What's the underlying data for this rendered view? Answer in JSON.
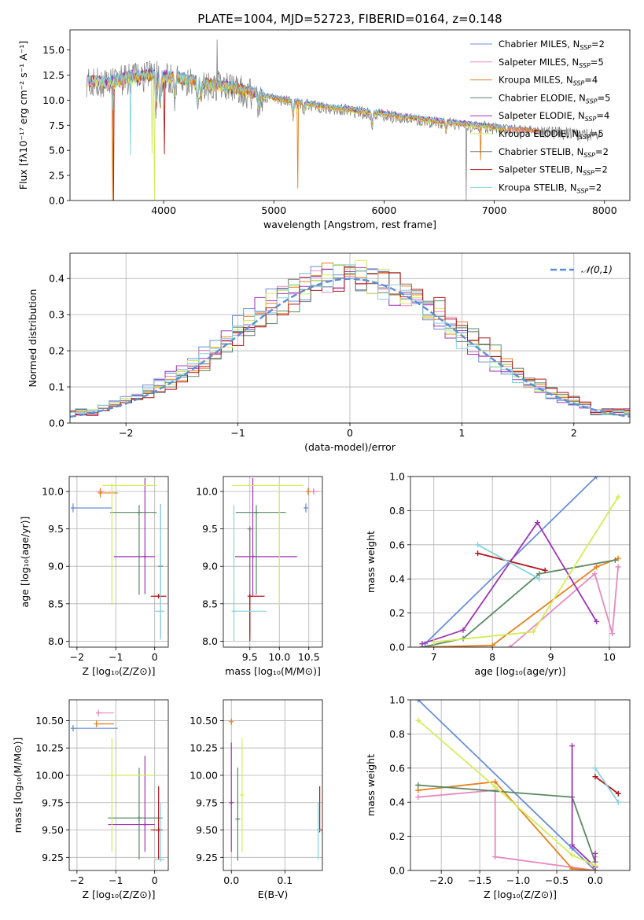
{
  "colors": {
    "Chabrier MILES": "#6a8fd8",
    "Salpeter MILES": "#e68abf",
    "Kroupa MILES": "#e5801b",
    "Chabrier ELODIE": "#5a8a64",
    "Salpeter ELODIE": "#a033b5",
    "Kroupa ELODIE": "#d4ec58",
    "Chabrier STELIB": "#737373",
    "Salpeter STELIB": "#b3151b",
    "Kroupa STELIB": "#86d3dd",
    "normal": "#5b8ed6"
  },
  "chart_data": [
    {
      "id": "spectrum",
      "type": "line",
      "title": "PLATE=1004, MJD=52723, FIBERID=0164, z=0.148",
      "xlabel": "wavelength [Angstrom, rest frame]",
      "ylabel": "Flux [fλ10⁻¹⁷ erg cm⁻² s⁻¹ A⁻¹]",
      "xlim": [
        3150,
        8230
      ],
      "ylim": [
        0,
        17
      ],
      "xticks": [
        4000,
        5000,
        6000,
        7000,
        8000
      ],
      "yticks": [
        0.0,
        2.5,
        5.0,
        7.5,
        10.0,
        12.5,
        15.0
      ],
      "grid": false,
      "legend_position": "top-right",
      "legend": [
        {
          "name": "Chabrier MILES",
          "nssp": "2"
        },
        {
          "name": "Salpeter MILES",
          "nssp": "5"
        },
        {
          "name": "Kroupa MILES",
          "nssp": "4"
        },
        {
          "name": "Chabrier ELODIE",
          "nssp": "5"
        },
        {
          "name": "Salpeter ELODIE",
          "nssp": "4"
        },
        {
          "name": "Kroupa ELODIE",
          "nssp": "5"
        },
        {
          "name": "Chabrier STELIB",
          "nssp": "2"
        },
        {
          "name": "Salpeter STELIB",
          "nssp": "2"
        },
        {
          "name": "Kroupa STELIB",
          "nssp": "2"
        }
      ],
      "continuum": {
        "x": [
          3300,
          3500,
          3700,
          3900,
          4100,
          4300,
          4600,
          5000,
          5500,
          6000,
          6500,
          7000,
          7500,
          7950
        ],
        "y": [
          12.0,
          11.7,
          12.3,
          12.5,
          12.3,
          11.8,
          11.3,
          10.2,
          9.3,
          8.6,
          7.9,
          7.3,
          6.9,
          6.6
        ]
      }
    },
    {
      "id": "residuals",
      "type": "step",
      "xlabel": "(data-model)/error",
      "ylabel": "Normed distribution",
      "xlim": [
        -2.5,
        2.5
      ],
      "ylim": [
        0,
        0.47
      ],
      "xticks": [
        -2,
        -1,
        0,
        1,
        2
      ],
      "yticks": [
        0.0,
        0.1,
        0.2,
        0.3,
        0.4
      ],
      "grid": true,
      "legend_position": "top-right",
      "legend": [
        {
          "name": "𝒩(0,1)"
        }
      ],
      "normal": {
        "mu": 0,
        "sigma": 1
      }
    },
    {
      "id": "age-vs-Z",
      "type": "errorbar",
      "xlabel": "Z [log₁₀(Z/Z⊙)]",
      "ylabel": "age  [log₁₀(age/yr)]",
      "xlim": [
        -2.2,
        0.35
      ],
      "ylim": [
        7.92,
        10.2
      ],
      "xticks": [
        -2,
        -1,
        0
      ],
      "yticks": [
        8.0,
        8.5,
        9.0,
        9.5,
        10.0
      ],
      "grid": true,
      "points": [
        {
          "series": "Chabrier MILES",
          "x": -2.1,
          "xerr": [
            0.05,
            1.0
          ],
          "y": 9.78,
          "yerr": [
            0.06,
            0.06
          ]
        },
        {
          "series": "Salpeter MILES",
          "x": -1.4,
          "xerr": [
            0.1,
            0.1
          ],
          "y": 10.0,
          "yerr": [
            0.05,
            0.05
          ]
        },
        {
          "series": "Kroupa MILES",
          "x": -1.4,
          "xerr": [
            0.05,
            0.45
          ],
          "y": 9.98,
          "yerr": [
            0.06,
            0.06
          ]
        },
        {
          "series": "Chabrier ELODIE",
          "x": -0.4,
          "xerr": [
            0.75,
            0.45
          ],
          "y": 9.72,
          "yerr": [
            1.1,
            0.1
          ]
        },
        {
          "series": "Salpeter ELODIE",
          "x": -0.25,
          "xerr": [
            0.8,
            0.25
          ],
          "y": 9.13,
          "yerr": [
            0.5,
            1.05
          ]
        },
        {
          "series": "Kroupa ELODIE",
          "x": -1.1,
          "xerr": [
            0.25,
            1.15
          ],
          "y": 10.08,
          "yerr": [
            1.6,
            0.0
          ]
        },
        {
          "series": "Chabrier STELIB",
          "x": 0.15,
          "xerr": [
            0.0,
            0.0
          ],
          "y": 9.0,
          "yerr": [
            0.95,
            0.83
          ]
        },
        {
          "series": "Salpeter STELIB",
          "x": 0.1,
          "xerr": [
            0.2,
            0.2
          ],
          "y": 8.6,
          "yerr": [
            0.0,
            0.0
          ]
        },
        {
          "series": "Kroupa STELIB",
          "x": 0.15,
          "xerr": [
            0.15,
            0.1
          ],
          "y": 8.4,
          "yerr": [
            0.38,
            1.42
          ]
        }
      ]
    },
    {
      "id": "age-vs-mass",
      "type": "errorbar",
      "xlabel": "mass [log₁₀(M/M⊙)]",
      "ylabel": "",
      "xlim": [
        9.05,
        10.73
      ],
      "ylim": [
        7.92,
        10.2
      ],
      "xticks": [
        9.5,
        10.0,
        10.5
      ],
      "yticks": [
        8.0,
        8.5,
        9.0,
        9.5,
        10.0
      ],
      "grid": true,
      "points": [
        {
          "series": "Chabrier MILES",
          "x": 10.45,
          "xerr": [
            0.03,
            0.03
          ],
          "y": 9.78,
          "yerr": [
            0.06,
            0.06
          ]
        },
        {
          "series": "Salpeter MILES",
          "x": 10.58,
          "xerr": [
            0.05,
            0.1
          ],
          "y": 10.0,
          "yerr": [
            0.04,
            0.04
          ]
        },
        {
          "series": "Kroupa MILES",
          "x": 10.49,
          "xerr": [
            0.02,
            0.02
          ],
          "y": 10.0,
          "yerr": [
            0.05,
            0.05
          ]
        },
        {
          "series": "Chabrier ELODIE",
          "x": 9.61,
          "xerr": [
            0.35,
            0.5
          ],
          "y": 9.72,
          "yerr": [
            1.1,
            0.1
          ]
        },
        {
          "series": "Salpeter ELODIE",
          "x": 9.55,
          "xerr": [
            0.3,
            0.75
          ],
          "y": 9.13,
          "yerr": [
            0.52,
            1.05
          ]
        },
        {
          "series": "Kroupa ELODIE",
          "x": 10.0,
          "xerr": [
            0.8,
            0.4
          ],
          "y": 10.08,
          "yerr": [
            1.6,
            0.0
          ]
        },
        {
          "series": "Chabrier STELIB",
          "x": 9.5,
          "xerr": [
            0.0,
            0.0
          ],
          "y": 9.5,
          "yerr": [
            1.42,
            0.0
          ]
        },
        {
          "series": "Salpeter STELIB",
          "x": 9.5,
          "xerr": [
            0.0,
            0.25
          ],
          "y": 8.6,
          "yerr": [
            0.6,
            0.0
          ]
        },
        {
          "series": "Kroupa STELIB",
          "x": 9.23,
          "xerr": [
            0.0,
            0.55
          ],
          "y": 8.4,
          "yerr": [
            0.4,
            1.42
          ]
        }
      ]
    },
    {
      "id": "weights-vs-age",
      "type": "line",
      "xlabel": "age  [log₁₀(age/yr)]",
      "ylabel": "mass weight",
      "xlim": [
        6.6,
        10.35
      ],
      "ylim": [
        0,
        1
      ],
      "xticks": [
        7,
        8,
        9,
        10
      ],
      "yticks": [
        0.0,
        0.2,
        0.4,
        0.6,
        0.8,
        1.0
      ],
      "grid": true,
      "series": [
        {
          "name": "Chabrier MILES",
          "x": [
            6.85,
            9.78
          ],
          "y": [
            0.02,
            1.0
          ]
        },
        {
          "name": "Salpeter MILES",
          "x": [
            8.3,
            9.75,
            10.05,
            10.15
          ],
          "y": [
            0.0,
            0.43,
            0.08,
            0.47
          ]
        },
        {
          "name": "Kroupa MILES",
          "x": [
            6.8,
            8.0,
            9.78,
            10.15
          ],
          "y": [
            0.0,
            0.01,
            0.47,
            0.52
          ]
        },
        {
          "name": "Chabrier ELODIE",
          "x": [
            6.8,
            7.5,
            8.8,
            10.1
          ],
          "y": [
            0.0,
            0.05,
            0.43,
            0.51
          ]
        },
        {
          "name": "Salpeter ELODIE",
          "x": [
            6.8,
            7.5,
            8.77,
            9.78
          ],
          "y": [
            0.02,
            0.1,
            0.73,
            0.15
          ]
        },
        {
          "name": "Kroupa ELODIE",
          "x": [
            7.0,
            8.7,
            10.15
          ],
          "y": [
            0.03,
            0.09,
            0.88
          ]
        },
        {
          "name": "Salpeter STELIB",
          "x": [
            7.75,
            8.9
          ],
          "y": [
            0.55,
            0.45
          ]
        },
        {
          "name": "Kroupa STELIB",
          "x": [
            7.75,
            8.8
          ],
          "y": [
            0.6,
            0.4
          ]
        }
      ]
    },
    {
      "id": "mass-vs-Z",
      "type": "errorbar",
      "xlabel": "Z [log₁₀(Z/Z⊙)]",
      "ylabel": "mass [log₁₀(M/M⊙)]",
      "xlim": [
        -2.2,
        0.35
      ],
      "ylim": [
        9.13,
        10.69
      ],
      "xticks": [
        -2,
        -1,
        0
      ],
      "yticks": [
        9.25,
        9.5,
        9.75,
        10.0,
        10.25,
        10.5
      ],
      "grid": true,
      "points": [
        {
          "series": "Chabrier MILES",
          "x": -2.1,
          "xerr": [
            0.05,
            1.15
          ],
          "y": 10.43,
          "yerr": [
            0.03,
            0.03
          ]
        },
        {
          "series": "Salpeter MILES",
          "x": -1.45,
          "xerr": [
            0.05,
            0.4
          ],
          "y": 10.57,
          "yerr": [
            0.03,
            0.03
          ]
        },
        {
          "series": "Kroupa MILES",
          "x": -1.5,
          "xerr": [
            0.0,
            0.45
          ],
          "y": 10.47,
          "yerr": [
            0.03,
            0.03
          ]
        },
        {
          "series": "Chabrier ELODIE",
          "x": -0.4,
          "xerr": [
            0.8,
            0.6
          ],
          "y": 9.61,
          "yerr": [
            0.38,
            0.46
          ]
        },
        {
          "series": "Salpeter ELODIE",
          "x": -0.25,
          "xerr": [
            0.95,
            0.25
          ],
          "y": 9.55,
          "yerr": [
            0.25,
            0.63
          ]
        },
        {
          "series": "Kroupa ELODIE",
          "x": -1.1,
          "xerr": [
            0.1,
            1.1
          ],
          "y": 10.0,
          "yerr": [
            0.7,
            0.34
          ]
        },
        {
          "series": "Salpeter STELIB",
          "x": 0.1,
          "xerr": [
            0.2,
            0.1
          ],
          "y": 9.5,
          "yerr": [
            0.27,
            0.4
          ]
        },
        {
          "series": "Kroupa STELIB",
          "x": 0.15,
          "xerr": [
            0.15,
            0.1
          ],
          "y": 9.23,
          "yerr": [
            0.0,
            0.52
          ]
        }
      ]
    },
    {
      "id": "mass-vs-ebv",
      "type": "errorbar",
      "xlabel": "E(B-V)",
      "ylabel": "",
      "xlim": [
        -0.015,
        0.17
      ],
      "ylim": [
        9.13,
        10.69
      ],
      "xticks": [
        0.0,
        0.1
      ],
      "yticks": [
        9.25,
        9.5,
        9.75,
        10.0,
        10.25,
        10.5
      ],
      "grid": true,
      "points": [
        {
          "series": "Kroupa MILES",
          "x": 0.0,
          "xerr": [
            0.0,
            0.0
          ],
          "y": 10.49,
          "yerr": [
            0.03,
            0.03
          ]
        },
        {
          "series": "Salpeter ELODIE",
          "x": 0.0,
          "xerr": [
            0.0,
            0.0
          ],
          "y": 9.75,
          "yerr": [
            0.45,
            0.55
          ]
        },
        {
          "series": "Chabrier ELODIE",
          "x": 0.012,
          "xerr": [
            0.0,
            0.0
          ],
          "y": 9.6,
          "yerr": [
            0.38,
            0.47
          ]
        },
        {
          "series": "Kroupa ELODIE",
          "x": 0.02,
          "xerr": [
            0.0,
            0.0
          ],
          "y": 9.82,
          "yerr": [
            0.52,
            0.52
          ]
        },
        {
          "series": "Salpeter STELIB",
          "x": 0.165,
          "xerr": [
            0.0,
            0.0
          ],
          "y": 9.5,
          "yerr": [
            0.0,
            0.4
          ]
        },
        {
          "series": "Kroupa STELIB",
          "x": 0.162,
          "xerr": [
            0.0,
            0.0
          ],
          "y": 9.5,
          "yerr": [
            0.27,
            0.25
          ]
        }
      ]
    },
    {
      "id": "weights-vs-Z",
      "type": "line",
      "xlabel": "Z [log₁₀(Z/Z⊙)]",
      "ylabel": "mass weight",
      "xlim": [
        -2.4,
        0.45
      ],
      "ylim": [
        0,
        1
      ],
      "xticks": [
        -2.0,
        -1.5,
        -1.0,
        -0.5,
        0.0
      ],
      "yticks": [
        0.0,
        0.2,
        0.4,
        0.6,
        0.8,
        1.0
      ],
      "grid": true,
      "series": [
        {
          "name": "Chabrier MILES",
          "x": [
            -2.3,
            -0.3,
            0.0
          ],
          "y": [
            1.0,
            0.13,
            0.0
          ]
        },
        {
          "name": "Salpeter MILES",
          "x": [
            -2.3,
            -1.3,
            -1.3,
            0.0,
            0.0
          ],
          "y": [
            0.43,
            0.47,
            0.08,
            0.0,
            0.08
          ]
        },
        {
          "name": "Kroupa MILES",
          "x": [
            -2.3,
            -1.3,
            -0.3,
            0.0
          ],
          "y": [
            0.47,
            0.52,
            0.01,
            0.0
          ]
        },
        {
          "name": "Chabrier ELODIE",
          "x": [
            -2.3,
            -0.3,
            0.0
          ],
          "y": [
            0.5,
            0.43,
            0.05
          ]
        },
        {
          "name": "Salpeter ELODIE",
          "x": [
            -0.3,
            -0.3,
            0.0,
            0.0
          ],
          "y": [
            0.73,
            0.15,
            0.02,
            0.1
          ]
        },
        {
          "name": "Kroupa ELODIE",
          "x": [
            -2.3,
            -1.3,
            -0.3,
            0.0
          ],
          "y": [
            0.88,
            0.49,
            0.09,
            0.03
          ]
        },
        {
          "name": "Salpeter STELIB",
          "x": [
            0.0,
            0.3
          ],
          "y": [
            0.55,
            0.45
          ]
        },
        {
          "name": "Kroupa STELIB",
          "x": [
            0.0,
            0.3
          ],
          "y": [
            0.6,
            0.4
          ]
        }
      ]
    }
  ]
}
